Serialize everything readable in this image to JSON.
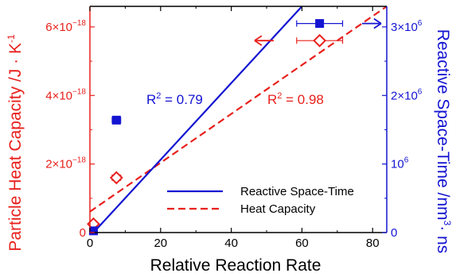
{
  "chart_data": {
    "type": "scatter",
    "xlabel": "Relative Reaction Rate",
    "ylabel_left": "Particle Heat Capacity /J · K",
    "ylabel_left_sup": "-1",
    "ylabel_right": "Reactive Space-Time /nm",
    "ylabel_right_sup": "3",
    "ylabel_right_suffix": "· ns",
    "xlim": [
      0,
      84
    ],
    "ylim_left": [
      0,
      6.6e-18
    ],
    "ylim_right": [
      0,
      3300000.0
    ],
    "x_ticks": [
      0,
      20,
      40,
      60,
      80
    ],
    "left_ticks": [
      {
        "value": 0,
        "mant": "0",
        "exp": ""
      },
      {
        "value": 2e-18,
        "mant": "2×10",
        "exp": "−18"
      },
      {
        "value": 4e-18,
        "mant": "4×10",
        "exp": "−18"
      },
      {
        "value": 6e-18,
        "mant": "6×10",
        "exp": "−18"
      }
    ],
    "right_ticks": [
      {
        "value": 0,
        "mant": "0",
        "exp": ""
      },
      {
        "value": 1000000.0,
        "mant": "10",
        "exp": "6"
      },
      {
        "value": 2000000.0,
        "mant": "2×10",
        "exp": "6"
      },
      {
        "value": 3000000.0,
        "mant": "3×10",
        "exp": "6"
      }
    ],
    "colors": {
      "left": "#e8201c",
      "right": "#1414d2",
      "axis": "#000000"
    },
    "series": [
      {
        "name": "Heat Capacity",
        "axis": "left",
        "marker": "diamond-open",
        "points": [
          {
            "x": 1,
            "y": 2.5e-19,
            "xerr": 0
          },
          {
            "x": 7.5,
            "y": 1.6e-18,
            "xerr": 1.2
          },
          {
            "x": 65,
            "y": 5.6e-18,
            "xerr": 6.5
          }
        ],
        "fit": {
          "x": [
            0,
            84
          ],
          "y": [
            6.1e-19,
            6.6e-18
          ],
          "style": "dashed",
          "r2_label": "R",
          "r2_exp": "2",
          "r2_value": " = 0.98"
        }
      },
      {
        "name": "Reactive Space-Time",
        "axis": "right",
        "marker": "square-filled",
        "points": [
          {
            "x": 1,
            "y": 25000,
            "xerr": 0
          },
          {
            "x": 7.5,
            "y": 1640000.0,
            "xerr": 1.2
          },
          {
            "x": 65,
            "y": 3050000.0,
            "xerr": 6.5
          }
        ],
        "fit": {
          "x": [
            1,
            60
          ],
          "y": [
            0,
            3300000.0
          ],
          "style": "solid",
          "r2_label": "R",
          "r2_exp": "2",
          "r2_value": " = 0.79"
        }
      }
    ],
    "legend": {
      "placement": "bottom-right",
      "entries": [
        {
          "label": "Reactive Space-Time",
          "series": "Reactive Space-Time"
        },
        {
          "label": "Heat Capacity",
          "series": "Heat Capacity"
        }
      ]
    },
    "annotations": [
      {
        "type": "arrow",
        "direction": "left",
        "series": "Heat Capacity",
        "from_x": 52,
        "y": 5.6e-18,
        "axis": "left"
      },
      {
        "type": "arrow",
        "direction": "right",
        "series": "Reactive Space-Time",
        "from_x": 77,
        "y": 3050000.0,
        "axis": "right"
      }
    ]
  }
}
